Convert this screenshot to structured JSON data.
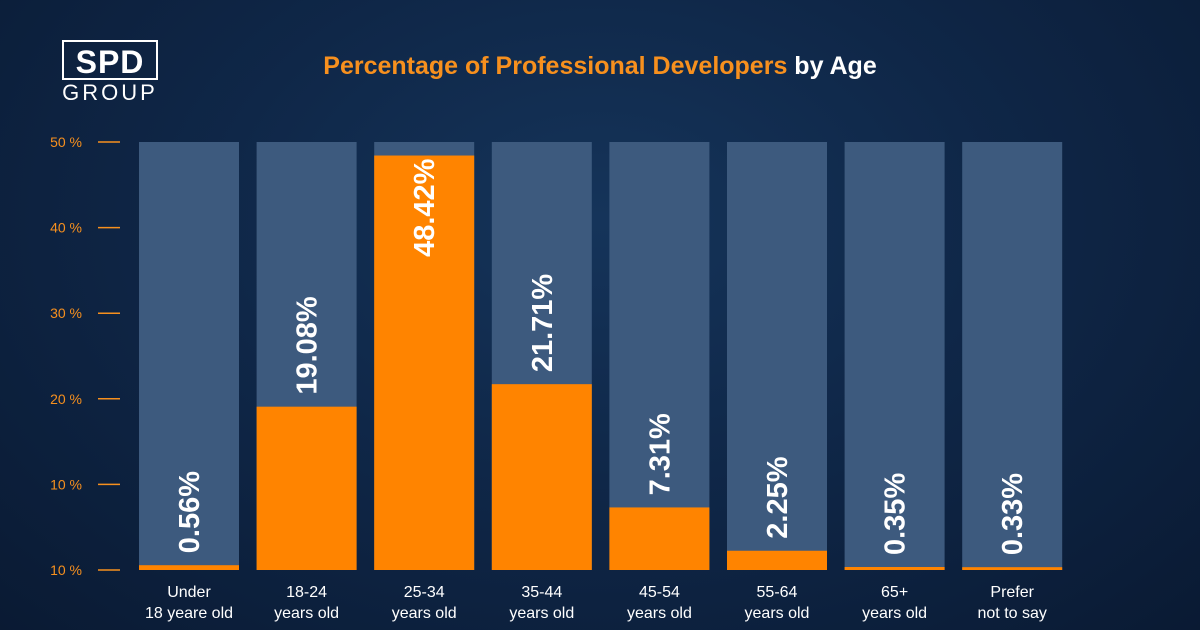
{
  "logo": {
    "top": "SPD",
    "bottom": "GROUP"
  },
  "title": {
    "highlight": "Percentage of Professional Developers",
    "rest": "by Age"
  },
  "colors": {
    "accent": "#ff8400",
    "track": "#3d5a7e",
    "axis_text": "#f7901e",
    "label_text": "#ffffff"
  },
  "chart_data": {
    "type": "bar",
    "title": "Percentage of Professional Developers by Age",
    "y_ticks": [
      "10 %",
      "10 %",
      "20 %",
      "30 %",
      "40 %",
      "50 %"
    ],
    "ylim": [
      0,
      50
    ],
    "categories": [
      [
        "Under",
        "18 yeare old"
      ],
      [
        "18-24",
        "years old"
      ],
      [
        "25-34",
        "years old"
      ],
      [
        "35-44",
        "years old"
      ],
      [
        "45-54",
        "years old"
      ],
      [
        "55-64",
        "years old"
      ],
      [
        "65+",
        "years old"
      ],
      [
        "Prefer",
        "not to say"
      ]
    ],
    "values": [
      0.56,
      19.08,
      48.42,
      21.71,
      7.31,
      2.25,
      0.35,
      0.33
    ],
    "value_labels": [
      "0.56%",
      "19.08%",
      "48.42%",
      "21.71%",
      "7.31%",
      "2.25%",
      "0.35%",
      "0.33%"
    ]
  }
}
